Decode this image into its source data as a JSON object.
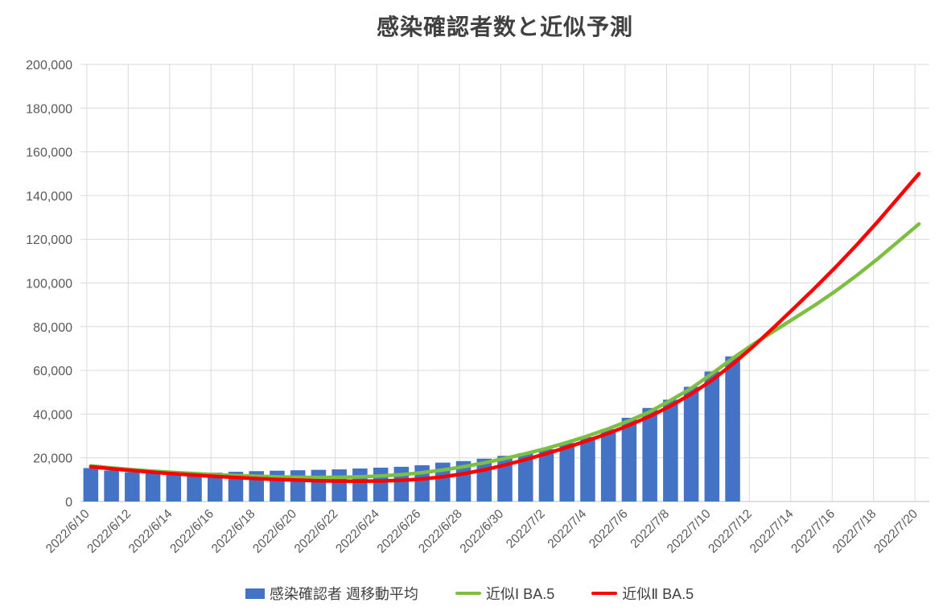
{
  "chart_data": {
    "type": "combo",
    "title": "感染確認者数と近似予測",
    "grid": true,
    "legend_position": "bottom",
    "categories": [
      "2022/6/10",
      "2022/6/11",
      "2022/6/12",
      "2022/6/13",
      "2022/6/14",
      "2022/6/15",
      "2022/6/16",
      "2022/6/17",
      "2022/6/18",
      "2022/6/19",
      "2022/6/20",
      "2022/6/21",
      "2022/6/22",
      "2022/6/23",
      "2022/6/24",
      "2022/6/25",
      "2022/6/26",
      "2022/6/27",
      "2022/6/28",
      "2022/6/29",
      "2022/6/30",
      "2022/7/1",
      "2022/7/2",
      "2022/7/3",
      "2022/7/4",
      "2022/7/5",
      "2022/7/6",
      "2022/7/7",
      "2022/7/8",
      "2022/7/9",
      "2022/7/10",
      "2022/7/11",
      "2022/7/12",
      "2022/7/13",
      "2022/7/14",
      "2022/7/15",
      "2022/7/16",
      "2022/7/17",
      "2022/7/18",
      "2022/7/19",
      "2022/7/20"
    ],
    "x_label_interval": 2,
    "y_axis": {
      "min": 0,
      "max": 200000,
      "tick_step": 20000,
      "tick_labels": [
        "0",
        "20,000",
        "40,000",
        "60,000",
        "80,000",
        "100,000",
        "120,000",
        "140,000",
        "160,000",
        "180,000",
        "200,000"
      ]
    },
    "series": [
      {
        "name": "感染確認者 週移動平均",
        "type": "bar",
        "color": "#4472C4",
        "values": [
          15300,
          14200,
          13400,
          12900,
          12700,
          12800,
          13200,
          13600,
          13900,
          14100,
          14300,
          14500,
          14700,
          15100,
          15500,
          15900,
          16600,
          17800,
          18500,
          19600,
          20900,
          22100,
          24000,
          26800,
          29500,
          33100,
          38300,
          42800,
          46600,
          52500,
          59500,
          66400
        ]
      },
      {
        "name": "近似Ⅰ BA.5",
        "type": "line",
        "color": "#7CBF42",
        "values": [
          16300,
          15400,
          14600,
          13900,
          13300,
          12800,
          12300,
          11900,
          11600,
          11300,
          11100,
          11000,
          11100,
          11300,
          11700,
          12300,
          13200,
          14400,
          15900,
          17700,
          19700,
          21900,
          24300,
          27000,
          30000,
          33300,
          37000,
          41100,
          46300,
          51800,
          58500,
          65500,
          72000,
          78000,
          84000,
          90000,
          96500,
          103500,
          111000,
          119000,
          127000
        ]
      },
      {
        "name": "近似Ⅱ BA.5",
        "type": "line",
        "color": "#FF0000",
        "values": [
          15900,
          15000,
          14200,
          13400,
          12700,
          12100,
          11500,
          11000,
          10500,
          10100,
          9800,
          9500,
          9350,
          9300,
          9400,
          9700,
          10300,
          11300,
          12700,
          14500,
          16700,
          19200,
          21900,
          24800,
          27900,
          31200,
          34900,
          39000,
          43700,
          49200,
          55500,
          62800,
          71000,
          79800,
          88800,
          98000,
          107500,
          117500,
          128000,
          139000,
          150000
        ]
      }
    ],
    "colors": {
      "gridline": "#D9D9D9",
      "axis_line": "#BFBFBF",
      "tick_text": "#595959",
      "title_text": "#404040"
    }
  }
}
